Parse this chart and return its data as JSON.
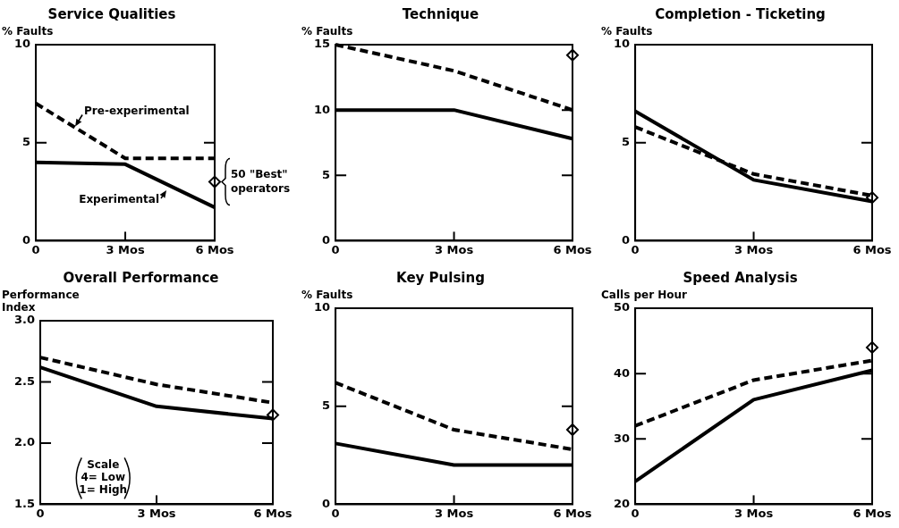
{
  "chart_data": [
    {
      "type": "line",
      "title": "Service Qualities",
      "ylabel": "% Faults",
      "categories": [
        "0",
        "3 Mos",
        "6 Mos"
      ],
      "ylim": [
        0,
        10
      ],
      "yticks": [
        0,
        5,
        10
      ],
      "series": [
        {
          "name": "Pre-experimental",
          "color": "#000000",
          "line_style": "dashed",
          "marker": "none",
          "values": [
            7,
            4.2,
            4.2
          ]
        },
        {
          "name": "Experimental",
          "color": "#000000",
          "line_style": "solid",
          "marker": "none",
          "values": [
            4,
            3.9,
            1.7
          ]
        },
        {
          "name": "50 \"Best\" operators",
          "type": "scatter",
          "color": "#000000",
          "marker": "diamond",
          "x": [
            "6 Mos"
          ],
          "values": [
            3
          ]
        }
      ]
    },
    {
      "type": "line",
      "title": "Technique",
      "ylabel": "% Faults",
      "categories": [
        "0",
        "3 Mos",
        "6 Mos"
      ],
      "ylim": [
        0,
        15
      ],
      "yticks": [
        0,
        5,
        10,
        15
      ],
      "series": [
        {
          "color": "#000000",
          "line_style": "dashed",
          "marker": "none",
          "values": [
            15,
            13,
            10
          ]
        },
        {
          "color": "#000000",
          "line_style": "solid",
          "marker": "none",
          "values": [
            10,
            10,
            7.8
          ]
        },
        {
          "type": "scatter",
          "color": "#000000",
          "marker": "diamond",
          "x": [
            "6 Mos"
          ],
          "values": [
            14.2
          ]
        }
      ]
    },
    {
      "type": "line",
      "title": "Completion - Ticketing",
      "ylabel": "% Faults",
      "categories": [
        "0",
        "3 Mos",
        "6 Mos"
      ],
      "ylim": [
        0,
        10
      ],
      "yticks": [
        0,
        5,
        10
      ],
      "series": [
        {
          "color": "#000000",
          "line_style": "dashed",
          "marker": "none",
          "values": [
            5.8,
            3.4,
            2.3
          ]
        },
        {
          "color": "#000000",
          "line_style": "solid",
          "marker": "none",
          "values": [
            6.6,
            3.1,
            2.0
          ]
        },
        {
          "type": "scatter",
          "color": "#000000",
          "marker": "diamond",
          "x": [
            "6 Mos"
          ],
          "values": [
            2.2
          ]
        }
      ]
    },
    {
      "type": "line",
      "title": "Overall Performance",
      "ylabel": "Performance\nIndex",
      "annotations": [
        "Scale\n4= Low\n1= High"
      ],
      "categories": [
        "0",
        "3 Mos",
        "6 Mos"
      ],
      "ylim": [
        1.5,
        3.0
      ],
      "yticks": [
        {
          "value": 1.5,
          "label": "1.5"
        },
        {
          "value": 2.0,
          "label": "2.0"
        },
        {
          "value": 2.5,
          "label": "2.5"
        },
        {
          "value": 3.0,
          "label": "3.0"
        }
      ],
      "series": [
        {
          "color": "#000000",
          "line_style": "dashed",
          "marker": "none",
          "values": [
            2.7,
            2.48,
            2.33
          ]
        },
        {
          "color": "#000000",
          "line_style": "solid",
          "marker": "none",
          "values": [
            2.62,
            2.3,
            2.2
          ]
        },
        {
          "type": "scatter",
          "color": "#000000",
          "marker": "diamond",
          "x": [
            "6 Mos"
          ],
          "values": [
            2.23
          ]
        }
      ]
    },
    {
      "type": "line",
      "title": "Key Pulsing",
      "ylabel": "% Faults",
      "categories": [
        "0",
        "3 Mos",
        "6 Mos"
      ],
      "ylim": [
        0,
        10
      ],
      "yticks": [
        0,
        5,
        10
      ],
      "series": [
        {
          "color": "#000000",
          "line_style": "dashed",
          "marker": "none",
          "values": [
            6.2,
            3.8,
            2.8
          ]
        },
        {
          "color": "#000000",
          "line_style": "solid",
          "marker": "none",
          "values": [
            3.1,
            2.0,
            2.0
          ]
        },
        {
          "type": "scatter",
          "color": "#000000",
          "marker": "diamond",
          "x": [
            "6 Mos"
          ],
          "values": [
            3.8
          ]
        }
      ]
    },
    {
      "type": "line",
      "title": "Speed Analysis",
      "ylabel": "Calls per Hour",
      "categories": [
        "0",
        "3 Mos",
        "6 Mos"
      ],
      "ylim": [
        20,
        50
      ],
      "yticks": [
        20,
        30,
        40,
        50
      ],
      "series": [
        {
          "color": "#000000",
          "line_style": "dashed",
          "marker": "none",
          "values": [
            32,
            39,
            42
          ]
        },
        {
          "color": "#000000",
          "line_style": "solid",
          "marker": "none",
          "values": [
            23.5,
            36,
            40.5
          ]
        },
        {
          "type": "scatter",
          "color": "#000000",
          "marker": "diamond",
          "x": [
            "6 Mos"
          ],
          "values": [
            44
          ]
        }
      ]
    }
  ]
}
